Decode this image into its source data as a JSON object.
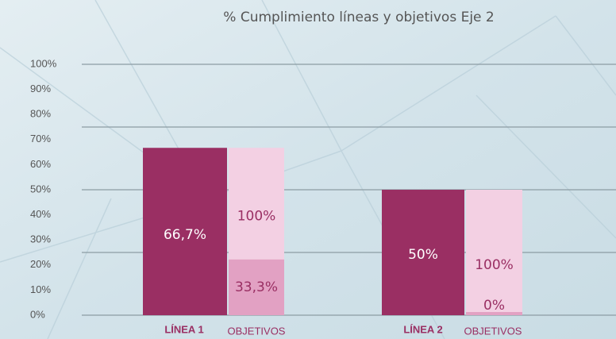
{
  "chart_data": {
    "type": "bar",
    "title": "% Cumplimiento líneas y objetivos Eje 2",
    "categories": [
      "LÍNEA 1",
      "LÍNEA 2"
    ],
    "sub_categories": [
      "OBJETIVOS",
      "OBJETIVOS"
    ],
    "series": [
      {
        "color": "#9a2f63",
        "values": [
          66.7,
          50
        ],
        "value_labels": [
          "66,7%",
          "50%"
        ]
      },
      {
        "color": "#f3d0e3",
        "values": [
          100,
          100
        ],
        "value_labels": [
          "100%",
          "100%"
        ]
      },
      {
        "color": "#e2a1c3",
        "values": [
          33.3,
          0
        ],
        "value_labels": [
          "33,3%",
          "0%"
        ]
      }
    ],
    "ylim": [
      0,
      100
    ],
    "yticks": [
      {
        "value": 0,
        "label": "0%"
      },
      {
        "value": 10,
        "label": "10%"
      },
      {
        "value": 20,
        "label": "20%"
      },
      {
        "value": 30,
        "label": "30%"
      },
      {
        "value": 40,
        "label": "40%"
      },
      {
        "value": 50,
        "label": "50%"
      },
      {
        "value": 60,
        "label": "60%"
      },
      {
        "value": 70,
        "label": "70%"
      },
      {
        "value": 80,
        "label": "80%"
      },
      {
        "value": 90,
        "label": "90%"
      },
      {
        "value": 100,
        "label": "100%"
      }
    ],
    "grid_lines": [
      0,
      25,
      50,
      75,
      100
    ]
  }
}
